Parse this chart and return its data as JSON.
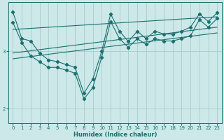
{
  "xlabel": "Humidex (Indice chaleur)",
  "background_color": "#cce8e8",
  "grid_color": "#aacccc",
  "line_color": "#1a7070",
  "spine_color": "#1a7070",
  "xlim": [
    -0.5,
    23.5
  ],
  "ylim": [
    1.75,
    3.85
  ],
  "yticks": [
    2,
    3
  ],
  "xticks": [
    0,
    1,
    2,
    3,
    4,
    5,
    6,
    7,
    8,
    9,
    10,
    11,
    12,
    13,
    14,
    15,
    16,
    17,
    18,
    19,
    20,
    21,
    22,
    23
  ],
  "curve_low_x": [
    0,
    1,
    2,
    3,
    4,
    5,
    6,
    7,
    8,
    9,
    10,
    11,
    12,
    13,
    14,
    15,
    16,
    17,
    18,
    19,
    20,
    21,
    22,
    23
  ],
  "curve_low_y": [
    3.5,
    3.15,
    2.92,
    2.82,
    2.72,
    2.72,
    2.67,
    2.62,
    2.17,
    2.37,
    2.9,
    3.52,
    3.22,
    3.07,
    3.22,
    3.12,
    3.22,
    3.18,
    3.18,
    3.22,
    3.27,
    3.55,
    3.42,
    3.57
  ],
  "curve_high_x": [
    0,
    1,
    2,
    3,
    4,
    5,
    6,
    7,
    8,
    9,
    10,
    11,
    12,
    13,
    14,
    15,
    16,
    17,
    18,
    19,
    20,
    21,
    22,
    23
  ],
  "curve_high_y": [
    3.68,
    3.22,
    3.18,
    2.97,
    2.85,
    2.82,
    2.77,
    2.72,
    2.27,
    2.52,
    3.0,
    3.65,
    3.35,
    3.17,
    3.35,
    3.22,
    3.35,
    3.3,
    3.3,
    3.35,
    3.42,
    3.65,
    3.52,
    3.67
  ],
  "trend1_x": [
    0,
    23
  ],
  "trend1_y": [
    2.87,
    3.32
  ],
  "trend2_x": [
    0,
    23
  ],
  "trend2_y": [
    2.97,
    3.42
  ],
  "trend3_x": [
    0,
    23
  ],
  "trend3_y": [
    3.38,
    3.6
  ],
  "xlabel_fontsize": 6,
  "tick_fontsize": 5,
  "linewidth": 0.8,
  "markersize": 2.2
}
